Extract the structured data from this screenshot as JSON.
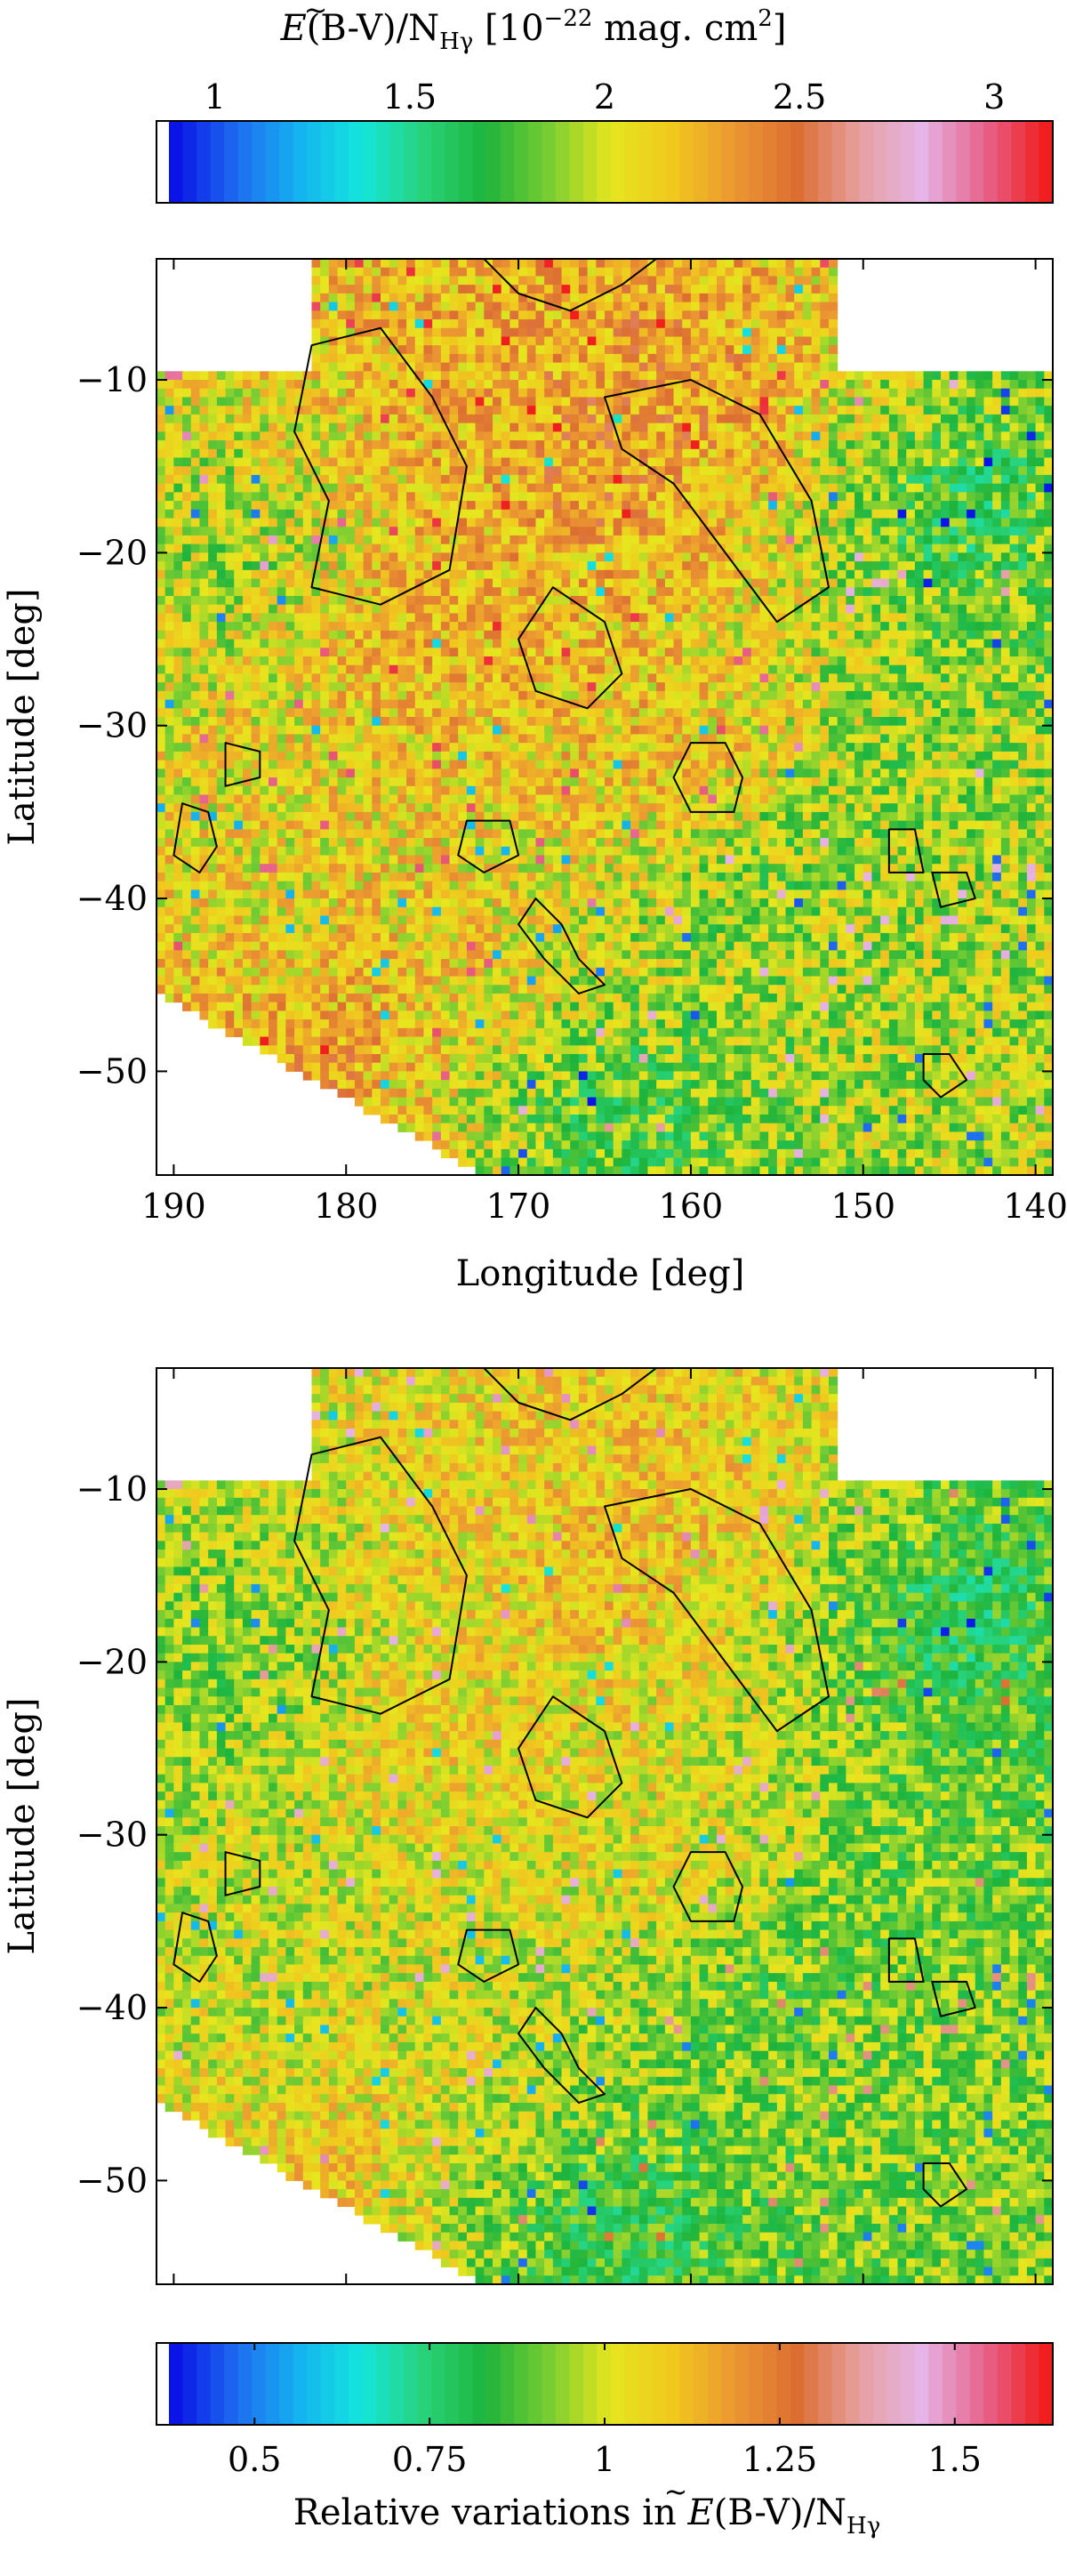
{
  "figure": {
    "top_colorbar": {
      "title_main": "(B-V)/N",
      "title_sub": "Hγ",
      "title_units": " [10",
      "title_exp": "−22",
      "title_units2": " mag. cm",
      "title_exp2": "2",
      "title_close": "]",
      "letter": "E",
      "ticks": [
        {
          "value": 1,
          "label": "1"
        },
        {
          "value": 1.5,
          "label": "1.5"
        },
        {
          "value": 2,
          "label": "2"
        },
        {
          "value": 2.5,
          "label": "2.5"
        },
        {
          "value": 3,
          "label": "3"
        }
      ],
      "range": [
        0.85,
        3.15
      ]
    },
    "bottom_colorbar": {
      "title_prefix": "Relative variations in ",
      "letter": "E",
      "title_main": "(B-V)/N",
      "title_sub": "Hγ",
      "ticks": [
        {
          "value": 0.5,
          "label": "0.5"
        },
        {
          "value": 0.75,
          "label": "0.75"
        },
        {
          "value": 1,
          "label": "1"
        },
        {
          "value": 1.25,
          "label": "1.25"
        },
        {
          "value": 1.5,
          "label": "1.5"
        }
      ],
      "range": [
        0.36,
        1.64
      ]
    },
    "colormap": [
      "#ffffff",
      "#0a14e6",
      "#1e6ef0",
      "#14b4f0",
      "#14e6dc",
      "#28d278",
      "#1eb43c",
      "#78cd32",
      "#e6e61e",
      "#f0c81e",
      "#eb9632",
      "#dc6e32",
      "#e6a0a0",
      "#e6b4e6",
      "#e6648c",
      "#f01e1e"
    ]
  },
  "chart_data": [
    {
      "type": "heatmap",
      "title": "",
      "xlabel": "Longitude [deg]",
      "ylabel": "Latitude [deg]",
      "xlim": [
        191,
        139
      ],
      "ylim": [
        -56,
        -3
      ],
      "xticks": [
        {
          "value": 190,
          "label": "190"
        },
        {
          "value": 180,
          "label": "180"
        },
        {
          "value": 170,
          "label": "170"
        },
        {
          "value": 160,
          "label": "160"
        },
        {
          "value": 150,
          "label": "150"
        },
        {
          "value": 140,
          "label": "140"
        }
      ],
      "yticks": [
        {
          "value": -10,
          "label": "−10"
        },
        {
          "value": -20,
          "label": "−20"
        },
        {
          "value": -30,
          "label": "−30"
        },
        {
          "value": -40,
          "label": "−40"
        },
        {
          "value": -50,
          "label": "−50"
        }
      ],
      "colorbar_range": [
        0.85,
        3.15
      ],
      "pixel_deg": 0.5,
      "coverage": {
        "missing_top_left": {
          "lon": [
            191,
            182
          ],
          "lat": [
            -9.3,
            -3
          ]
        },
        "missing_top_right": {
          "lon": [
            151.5,
            139
          ],
          "lat": [
            -9.3,
            -3
          ]
        },
        "missing_bottom_left_corner": [
          [
            191,
            -45.5
          ],
          [
            191,
            -56
          ],
          [
            172,
            -56
          ]
        ]
      },
      "field_anchors": [
        {
          "lon": 165,
          "lat": -15,
          "value": 2.45
        },
        {
          "lon": 160,
          "lat": -10,
          "value": 2.4
        },
        {
          "lon": 170,
          "lat": -8,
          "value": 2.3
        },
        {
          "lon": 175,
          "lat": -25,
          "value": 2.35
        },
        {
          "lon": 160,
          "lat": -32,
          "value": 2.45
        },
        {
          "lon": 145,
          "lat": -18,
          "value": 1.55
        },
        {
          "lon": 148,
          "lat": -32,
          "value": 1.9
        },
        {
          "lon": 150,
          "lat": -44,
          "value": 2.0
        },
        {
          "lon": 165,
          "lat": -52,
          "value": 1.55
        },
        {
          "lon": 172,
          "lat": -44,
          "value": 2.2
        },
        {
          "lon": 183,
          "lat": -40,
          "value": 2.05
        },
        {
          "lon": 186,
          "lat": -20,
          "value": 1.85
        },
        {
          "lon": 156,
          "lat": -38,
          "value": 1.7
        },
        {
          "lon": 181,
          "lat": -48,
          "value": 2.5
        }
      ],
      "contours": [
        {
          "name": "ridge-north",
          "points": [
            [
              165,
              -11
            ],
            [
              160,
              -10
            ],
            [
              156,
              -12
            ],
            [
              153,
              -17
            ],
            [
              152,
              -22
            ],
            [
              155,
              -24
            ],
            [
              158,
              -20
            ],
            [
              161,
              -16
            ],
            [
              164,
              -14
            ]
          ]
        },
        {
          "name": "cloud-west",
          "points": [
            [
              182,
              -8
            ],
            [
              178,
              -7
            ],
            [
              175,
              -11
            ],
            [
              173,
              -15
            ],
            [
              174,
              -21
            ],
            [
              178,
              -23
            ],
            [
              182,
              -22
            ],
            [
              181,
              -17
            ],
            [
              183,
              -13
            ]
          ]
        },
        {
          "name": "cloud-center",
          "points": [
            [
              168,
              -22
            ],
            [
              165,
              -24
            ],
            [
              164,
              -27
            ],
            [
              166,
              -29
            ],
            [
              169,
              -28
            ],
            [
              170,
              -25
            ]
          ]
        },
        {
          "name": "knot-159-32",
          "points": [
            [
              160,
              -31
            ],
            [
              158,
              -31
            ],
            [
              157,
              -33
            ],
            [
              157.5,
              -35
            ],
            [
              160,
              -35
            ],
            [
              161,
              -33
            ]
          ]
        },
        {
          "name": "knot-172-37",
          "points": [
            [
              173,
              -35.5
            ],
            [
              170.5,
              -35.5
            ],
            [
              170,
              -37.5
            ],
            [
              172,
              -38.5
            ],
            [
              173.5,
              -37.5
            ]
          ]
        },
        {
          "name": "knot-188-36",
          "points": [
            [
              189.5,
              -34.5
            ],
            [
              188,
              -35
            ],
            [
              187.5,
              -37
            ],
            [
              188.5,
              -38.5
            ],
            [
              190,
              -37.5
            ]
          ]
        },
        {
          "name": "knot-186-32",
          "points": [
            [
              187,
              -31
            ],
            [
              185,
              -31.5
            ],
            [
              185,
              -33
            ],
            [
              187,
              -33.5
            ]
          ]
        },
        {
          "name": "knot-145-39",
          "points": [
            [
              146,
              -38.5
            ],
            [
              144,
              -38.5
            ],
            [
              143.5,
              -40
            ],
            [
              145.5,
              -40.5
            ]
          ]
        },
        {
          "name": "knot-147-37",
          "points": [
            [
              148.5,
              -36
            ],
            [
              147,
              -36
            ],
            [
              146.5,
              -38.5
            ],
            [
              148.5,
              -38.5
            ]
          ]
        },
        {
          "name": "knot-146-50",
          "points": [
            [
              146.5,
              -49
            ],
            [
              145,
              -49
            ],
            [
              144,
              -50.5
            ],
            [
              145.5,
              -51.5
            ],
            [
              146.5,
              -50.5
            ]
          ]
        },
        {
          "name": "chain-168-43",
          "points": [
            [
              169,
              -40
            ],
            [
              167.5,
              -41.5
            ],
            [
              166.5,
              -43.5
            ],
            [
              165,
              -45
            ],
            [
              166.5,
              -45.5
            ],
            [
              168.5,
              -43.5
            ],
            [
              170,
              -41.5
            ]
          ]
        },
        {
          "name": "north-edge",
          "points": [
            [
              172,
              -3
            ],
            [
              170,
              -5
            ],
            [
              167,
              -6
            ],
            [
              164,
              -4.5
            ],
            [
              162,
              -3
            ]
          ]
        }
      ]
    },
    {
      "type": "heatmap",
      "title": "",
      "xlabel": "",
      "ylabel": "Latitude [deg]",
      "xlim": [
        191,
        139
      ],
      "ylim": [
        -56,
        -3
      ],
      "xticks": [],
      "yticks": [
        {
          "value": -10,
          "label": "−10"
        },
        {
          "value": -20,
          "label": "−20"
        },
        {
          "value": -30,
          "label": "−30"
        },
        {
          "value": -40,
          "label": "−40"
        },
        {
          "value": -50,
          "label": "−50"
        }
      ],
      "colorbar_range": [
        0.36,
        1.64
      ],
      "pixel_deg": 0.5
    }
  ]
}
